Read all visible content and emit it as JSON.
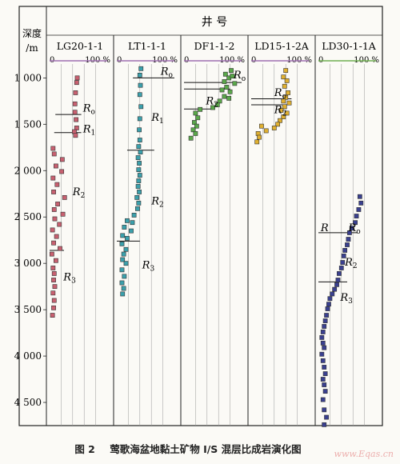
{
  "header": {
    "title": "井  号",
    "depth_label_1": "深度",
    "depth_label_2": "/m"
  },
  "caption": {
    "num": "图 2",
    "text": "莺歌海盆地黏土矿物 I/S 混层比成岩演化图"
  },
  "watermark": "www.Eqas.cn",
  "chart_data": {
    "type": "scatter",
    "y_axis": {
      "label": "深度/m",
      "range": [
        850,
        4750
      ],
      "reversed": true,
      "ticks": [
        1000,
        1500,
        2000,
        2500,
        3000,
        3500,
        4000,
        4500
      ],
      "tick_labels": [
        "1 000",
        "1 500",
        "2 000",
        "2 500",
        "3 000",
        "3 500",
        "4 000",
        "4 500"
      ]
    },
    "x_axis": {
      "range": [
        0,
        100
      ],
      "tick_labels": [
        "0",
        "100 %"
      ]
    },
    "grid": true,
    "wells": [
      {
        "name": "LG20-1-1",
        "color": "#c86070",
        "bar_color": "#a070b0",
        "points": [
          [
            48,
            1000
          ],
          [
            47,
            1050
          ],
          [
            45,
            1160
          ],
          [
            44,
            1280
          ],
          [
            44,
            1370
          ],
          [
            46,
            1450
          ],
          [
            47,
            1540
          ],
          [
            43,
            1580
          ],
          [
            45,
            1620
          ],
          [
            6,
            1760
          ],
          [
            8,
            1820
          ],
          [
            22,
            1880
          ],
          [
            11,
            1950
          ],
          [
            21,
            2010
          ],
          [
            6,
            2080
          ],
          [
            13,
            2150
          ],
          [
            7,
            2230
          ],
          [
            26,
            2290
          ],
          [
            14,
            2360
          ],
          [
            8,
            2420
          ],
          [
            23,
            2470
          ],
          [
            9,
            2520
          ],
          [
            17,
            2580
          ],
          [
            5,
            2640
          ],
          [
            12,
            2710
          ],
          [
            7,
            2780
          ],
          [
            18,
            2840
          ],
          [
            4,
            2900
          ],
          [
            11,
            2970
          ],
          [
            6,
            3050
          ],
          [
            8,
            3110
          ],
          [
            7,
            3180
          ],
          [
            9,
            3250
          ],
          [
            6,
            3320
          ],
          [
            8,
            3400
          ],
          [
            7,
            3480
          ],
          [
            5,
            3560
          ]
        ],
        "boundaries": [
          {
            "depth": 1395,
            "x_start": 10,
            "x_end": 55
          },
          {
            "depth": 1590,
            "x_start": 8,
            "x_end": 55
          },
          {
            "depth": 2860,
            "x_start": 0,
            "x_end": 25
          }
        ],
        "labels": [
          {
            "text": "R",
            "sub": "o",
            "x": 58,
            "depth": 1330
          },
          {
            "text": "R",
            "sub": "1",
            "x": 58,
            "depth": 1555
          },
          {
            "text": "R",
            "sub": "2",
            "x": 40,
            "depth": 2230
          },
          {
            "text": "R",
            "sub": "3",
            "x": 24,
            "depth": 3150
          }
        ]
      },
      {
        "name": "LT1-1-1",
        "color": "#3ba0ac",
        "bar_color": "#a070b0",
        "points": [
          [
            42,
            900
          ],
          [
            40,
            970
          ],
          [
            41,
            1080
          ],
          [
            40,
            1180
          ],
          [
            42,
            1310
          ],
          [
            40,
            1440
          ],
          [
            39,
            1560
          ],
          [
            40,
            1670
          ],
          [
            38,
            1740
          ],
          [
            41,
            1800
          ],
          [
            37,
            1860
          ],
          [
            39,
            1920
          ],
          [
            38,
            1990
          ],
          [
            40,
            2050
          ],
          [
            38,
            2110
          ],
          [
            37,
            2170
          ],
          [
            39,
            2230
          ],
          [
            35,
            2290
          ],
          [
            38,
            2350
          ],
          [
            36,
            2410
          ],
          [
            30,
            2480
          ],
          [
            18,
            2540
          ],
          [
            27,
            2560
          ],
          [
            13,
            2610
          ],
          [
            25,
            2650
          ],
          [
            10,
            2700
          ],
          [
            18,
            2730
          ],
          [
            9,
            2790
          ],
          [
            16,
            2850
          ],
          [
            12,
            2900
          ],
          [
            10,
            2960
          ],
          [
            16,
            3000
          ],
          [
            9,
            3070
          ],
          [
            13,
            3140
          ],
          [
            9,
            3210
          ],
          [
            12,
            3270
          ],
          [
            10,
            3330
          ]
        ],
        "boundaries": [
          {
            "depth": 1000,
            "x_start": 28,
            "x_end": 100
          },
          {
            "depth": 1780,
            "x_start": 18,
            "x_end": 65
          },
          {
            "depth": 2760,
            "x_start": 0,
            "x_end": 40
          }
        ],
        "labels": [
          {
            "text": "R",
            "sub": "o",
            "x": 76,
            "depth": 930
          },
          {
            "text": "R",
            "sub": "1",
            "x": 60,
            "depth": 1430
          },
          {
            "text": "R",
            "sub": "2",
            "x": 60,
            "depth": 2330
          },
          {
            "text": "R",
            "sub": "3",
            "x": 44,
            "depth": 3020
          }
        ]
      },
      {
        "name": "DF1-1-2",
        "color": "#5aa84a",
        "bar_color": "#a070b0",
        "points": [
          [
            72,
            960
          ],
          [
            78,
            1000
          ],
          [
            82,
            920
          ],
          [
            70,
            1040
          ],
          [
            74,
            1100
          ],
          [
            80,
            1150
          ],
          [
            70,
            1200
          ],
          [
            62,
            1250
          ],
          [
            78,
            1220
          ],
          [
            58,
            1290
          ],
          [
            50,
            1320
          ],
          [
            28,
            1340
          ],
          [
            20,
            1380
          ],
          [
            24,
            1430
          ],
          [
            18,
            1480
          ],
          [
            22,
            1520
          ],
          [
            16,
            1560
          ],
          [
            20,
            1600
          ],
          [
            12,
            1650
          ],
          [
            84,
            980
          ],
          [
            88,
            1060
          ],
          [
            66,
            1130
          ]
        ],
        "boundaries": [
          {
            "depth": 1050,
            "x_start": 0,
            "x_end": 100
          },
          {
            "depth": 1120,
            "x_start": 0,
            "x_end": 80
          },
          {
            "depth": 1335,
            "x_start": 0,
            "x_end": 50
          }
        ],
        "labels": [
          {
            "text": "R",
            "sub": "o",
            "x": 86,
            "depth": 970
          },
          {
            "text": "R",
            "sub": "2",
            "x": 38,
            "depth": 1250
          }
        ]
      },
      {
        "name": "LD15-1-2A",
        "color": "#e0b030",
        "bar_color": "#a070b0",
        "points": [
          [
            60,
            920
          ],
          [
            56,
            990
          ],
          [
            62,
            1030
          ],
          [
            58,
            1090
          ],
          [
            64,
            1160
          ],
          [
            60,
            1210
          ],
          [
            56,
            1250
          ],
          [
            66,
            1270
          ],
          [
            58,
            1310
          ],
          [
            52,
            1350
          ],
          [
            62,
            1380
          ],
          [
            56,
            1420
          ],
          [
            50,
            1460
          ],
          [
            46,
            1500
          ],
          [
            40,
            1540
          ],
          [
            26,
            1570
          ],
          [
            12,
            1600
          ],
          [
            14,
            1640
          ],
          [
            10,
            1690
          ],
          [
            18,
            1520
          ]
        ],
        "boundaries": [
          {
            "depth": 1225,
            "x_start": 0,
            "x_end": 70
          },
          {
            "depth": 1290,
            "x_start": 0,
            "x_end": 70
          }
        ],
        "labels": [
          {
            "text": "R",
            "sub": "o",
            "x": 40,
            "depth": 1160
          },
          {
            "text": "R",
            "sub": "2",
            "x": 40,
            "depth": 1345
          }
        ]
      },
      {
        "name": "LD30-1-1A",
        "color": "#3a4090",
        "bar_color": "#70b050",
        "points": [
          [
            72,
            2280
          ],
          [
            74,
            2350
          ],
          [
            70,
            2420
          ],
          [
            66,
            2490
          ],
          [
            64,
            2560
          ],
          [
            58,
            2620
          ],
          [
            54,
            2670
          ],
          [
            52,
            2740
          ],
          [
            50,
            2800
          ],
          [
            46,
            2860
          ],
          [
            44,
            2920
          ],
          [
            42,
            2990
          ],
          [
            40,
            3050
          ],
          [
            36,
            3110
          ],
          [
            34,
            3180
          ],
          [
            32,
            3230
          ],
          [
            28,
            3280
          ],
          [
            24,
            3330
          ],
          [
            20,
            3380
          ],
          [
            18,
            3440
          ],
          [
            16,
            3490
          ],
          [
            14,
            3560
          ],
          [
            12,
            3620
          ],
          [
            10,
            3680
          ],
          [
            8,
            3740
          ],
          [
            6,
            3800
          ],
          [
            8,
            3860
          ],
          [
            10,
            3910
          ],
          [
            6,
            3980
          ],
          [
            8,
            4050
          ],
          [
            10,
            4120
          ],
          [
            12,
            4190
          ],
          [
            8,
            4250
          ],
          [
            10,
            4310
          ],
          [
            12,
            4380
          ],
          [
            8,
            4470
          ],
          [
            10,
            4580
          ],
          [
            14,
            4660
          ],
          [
            10,
            4740
          ]
        ],
        "boundaries": [
          {
            "depth": 2670,
            "x_start": 0,
            "x_end": 68
          },
          {
            "depth": 3200,
            "x_start": 0,
            "x_end": 50
          }
        ],
        "labels": [
          {
            "text": "R",
            "sub": "",
            "x": 4,
            "depth": 2620
          },
          {
            "text": "R",
            "sub": "o",
            "x": 52,
            "depth": 2620
          },
          {
            "text": "R",
            "sub": "2",
            "x": 46,
            "depth": 2990
          },
          {
            "text": "R",
            "sub": "3",
            "x": 38,
            "depth": 3370
          }
        ]
      }
    ]
  }
}
